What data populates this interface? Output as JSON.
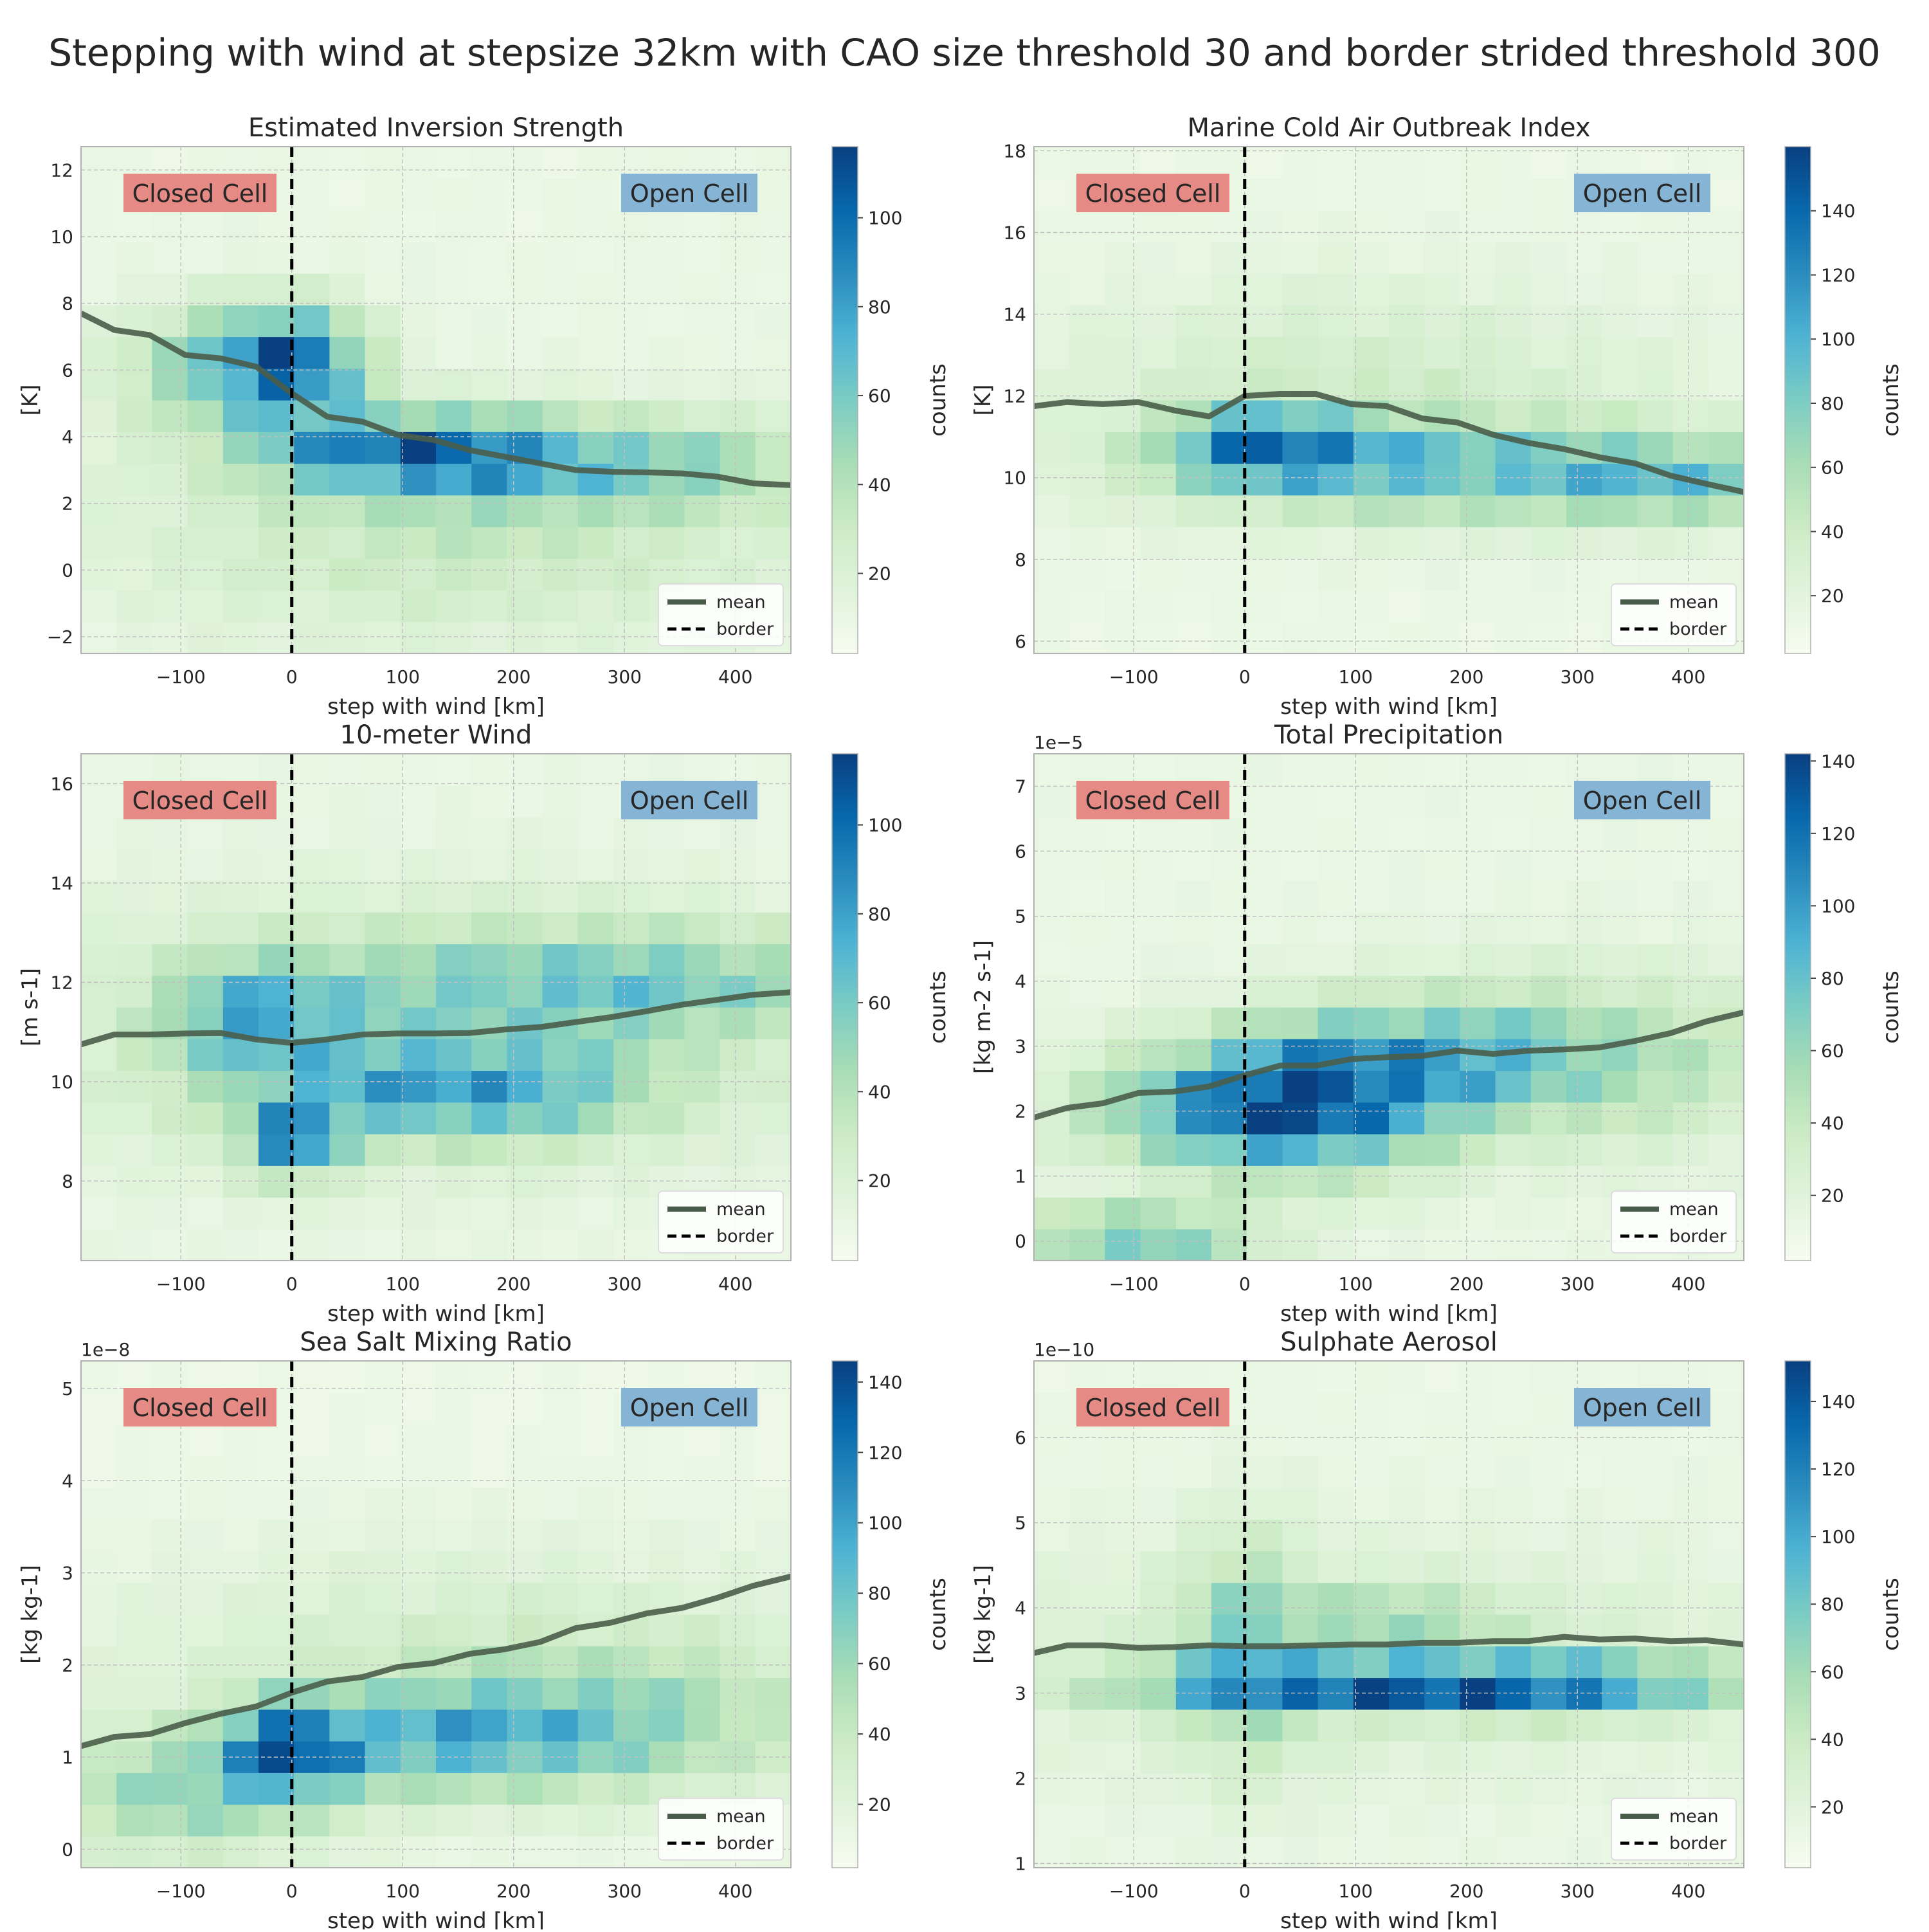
{
  "figure": {
    "title": "Stepping with wind at stepsize 32km with CAO size threshold 30 and border strided threshold 300"
  },
  "colors": {
    "cmap": [
      "#f7fcf0",
      "#e0f3db",
      "#ccebc5",
      "#a8ddb5",
      "#7bccc4",
      "#4eb3d3",
      "#2b8cbe",
      "#0868ac",
      "#084081"
    ],
    "empty_bin": "#eeeeee",
    "mean_line": "#4a5d4a",
    "border_line": "#000000",
    "closed_cell_box": "#e58a84",
    "open_cell_box": "#86b4d4",
    "grid": "#c0c0c0",
    "axes_edge": "#b0b0b0"
  },
  "chart_data": [
    {
      "type": "heatmap",
      "title": "Estimated Inversion Strength",
      "xlabel": "step with wind [km]",
      "ylabel": "[K]",
      "exponent_label": "",
      "xlim": [
        -190,
        450
      ],
      "ylim": [
        -2.5,
        12.7
      ],
      "xticks": [
        -100,
        0,
        100,
        200,
        300,
        400
      ],
      "xtick_labels": [
        "−100",
        "0",
        "100",
        "200",
        "300",
        "400"
      ],
      "yticks": [
        -2,
        0,
        2,
        4,
        6,
        8,
        10,
        12
      ],
      "ytick_labels": [
        "−2",
        "0",
        "2",
        "4",
        "6",
        "8",
        "10",
        "12"
      ],
      "colorbar": {
        "label": "counts",
        "min": 2,
        "max": 116,
        "ticks": [
          20,
          40,
          60,
          80,
          100
        ],
        "tick_labels": [
          "20",
          "40",
          "60",
          "80",
          "100"
        ]
      },
      "bins": {
        "nx": 20,
        "ny": 16
      },
      "hotspots": [
        {
          "x": 0,
          "y": 6.3,
          "sx": 45,
          "sy": 1.1,
          "amp": 70
        },
        {
          "x": 100,
          "y": 3.6,
          "sx": 90,
          "sy": 0.8,
          "amp": 65
        },
        {
          "x": 280,
          "y": 3.2,
          "sx": 150,
          "sy": 1.0,
          "amp": 40
        },
        {
          "x": -60,
          "y": 6.0,
          "sx": 70,
          "sy": 1.3,
          "amp": 40
        },
        {
          "x": 150,
          "y": 1.0,
          "sx": 220,
          "sy": 2.2,
          "amp": 22
        }
      ],
      "background": 10,
      "mean": {
        "x": [
          -190,
          -160,
          -128,
          -96,
          -64,
          -32,
          0,
          32,
          64,
          96,
          128,
          160,
          192,
          224,
          256,
          288,
          320,
          352,
          384,
          416,
          450
        ],
        "y": [
          7.7,
          7.2,
          7.05,
          6.45,
          6.35,
          6.1,
          5.3,
          4.6,
          4.45,
          4.05,
          3.9,
          3.6,
          3.4,
          3.2,
          3.0,
          2.95,
          2.93,
          2.9,
          2.8,
          2.6,
          2.55
        ]
      },
      "border_x": 0,
      "labels": {
        "closed": "Closed Cell",
        "open": "Open Cell"
      },
      "legend": {
        "mean": "mean",
        "border": "border"
      }
    },
    {
      "type": "heatmap",
      "title": "Marine Cold Air Outbreak Index",
      "xlabel": "step with wind [km]",
      "ylabel": "[K]",
      "exponent_label": "",
      "xlim": [
        -190,
        450
      ],
      "ylim": [
        5.7,
        18.1
      ],
      "xticks": [
        -100,
        0,
        100,
        200,
        300,
        400
      ],
      "xtick_labels": [
        "−100",
        "0",
        "100",
        "200",
        "300",
        "400"
      ],
      "yticks": [
        6,
        8,
        10,
        12,
        14,
        16,
        18
      ],
      "ytick_labels": [
        "6",
        "8",
        "10",
        "12",
        "14",
        "16",
        "18"
      ],
      "colorbar": {
        "label": "counts",
        "min": 2,
        "max": 160,
        "ticks": [
          20,
          40,
          60,
          80,
          100,
          120,
          140
        ],
        "tick_labels": [
          "20",
          "40",
          "60",
          "80",
          "100",
          "120",
          "140"
        ]
      },
      "bins": {
        "nx": 20,
        "ny": 16
      },
      "hotspots": [
        {
          "x": 20,
          "y": 10.8,
          "sx": 60,
          "sy": 0.6,
          "amp": 90
        },
        {
          "x": 200,
          "y": 10.2,
          "sx": 170,
          "sy": 0.8,
          "amp": 65
        },
        {
          "x": 400,
          "y": 9.8,
          "sx": 80,
          "sy": 0.7,
          "amp": 45
        },
        {
          "x": 100,
          "y": 12.0,
          "sx": 200,
          "sy": 2.0,
          "amp": 25
        }
      ],
      "background": 12,
      "mean": {
        "x": [
          -190,
          -160,
          -128,
          -96,
          -64,
          -32,
          0,
          32,
          64,
          96,
          128,
          160,
          192,
          224,
          256,
          288,
          320,
          352,
          384,
          416,
          450
        ],
        "y": [
          11.75,
          11.85,
          11.8,
          11.85,
          11.65,
          11.5,
          12.0,
          12.05,
          12.05,
          11.8,
          11.75,
          11.45,
          11.35,
          11.05,
          10.85,
          10.7,
          10.5,
          10.35,
          10.05,
          9.85,
          9.65
        ]
      },
      "border_x": 0,
      "labels": {
        "closed": "Closed Cell",
        "open": "Open Cell"
      },
      "legend": {
        "mean": "mean",
        "border": "border"
      }
    },
    {
      "type": "heatmap",
      "title": "10-meter Wind",
      "xlabel": "step with wind [km]",
      "ylabel": "[m s-1]",
      "exponent_label": "",
      "xlim": [
        -190,
        450
      ],
      "ylim": [
        6.4,
        16.6
      ],
      "xticks": [
        -100,
        0,
        100,
        200,
        300,
        400
      ],
      "xtick_labels": [
        "−100",
        "0",
        "100",
        "200",
        "300",
        "400"
      ],
      "yticks": [
        8,
        10,
        12,
        14,
        16
      ],
      "ytick_labels": [
        "8",
        "10",
        "12",
        "14",
        "16"
      ],
      "colorbar": {
        "label": "counts",
        "min": 2,
        "max": 116,
        "ticks": [
          20,
          40,
          60,
          80,
          100
        ],
        "tick_labels": [
          "20",
          "40",
          "60",
          "80",
          "100"
        ]
      },
      "bins": {
        "nx": 20,
        "ny": 16
      },
      "hotspots": [
        {
          "x": 0,
          "y": 8.8,
          "sx": 30,
          "sy": 0.5,
          "amp": 70
        },
        {
          "x": 150,
          "y": 9.8,
          "sx": 120,
          "sy": 0.7,
          "amp": 55
        },
        {
          "x": -30,
          "y": 11.3,
          "sx": 60,
          "sy": 0.8,
          "amp": 45
        },
        {
          "x": 300,
          "y": 12.0,
          "sx": 180,
          "sy": 0.8,
          "amp": 40
        },
        {
          "x": 100,
          "y": 11.0,
          "sx": 260,
          "sy": 2.0,
          "amp": 20
        }
      ],
      "background": 10,
      "mean": {
        "x": [
          -190,
          -160,
          -128,
          -96,
          -64,
          -32,
          0,
          32,
          64,
          96,
          128,
          160,
          192,
          224,
          256,
          288,
          320,
          352,
          384,
          416,
          450
        ],
        "y": [
          10.75,
          10.95,
          10.95,
          10.97,
          10.98,
          10.85,
          10.78,
          10.85,
          10.95,
          10.97,
          10.97,
          10.98,
          11.05,
          11.1,
          11.2,
          11.3,
          11.42,
          11.55,
          11.65,
          11.75,
          11.8
        ]
      },
      "border_x": 0,
      "labels": {
        "closed": "Closed Cell",
        "open": "Open Cell"
      },
      "legend": {
        "mean": "mean",
        "border": "border"
      }
    },
    {
      "type": "heatmap",
      "title": "Total Precipitation",
      "xlabel": "step with wind [km]",
      "ylabel": "[kg m-2 s-1]",
      "exponent_label": "1e−5",
      "xlim": [
        -190,
        450
      ],
      "ylim": [
        -0.3,
        7.5
      ],
      "xticks": [
        -100,
        0,
        100,
        200,
        300,
        400
      ],
      "xtick_labels": [
        "−100",
        "0",
        "100",
        "200",
        "300",
        "400"
      ],
      "yticks": [
        0,
        1,
        2,
        3,
        4,
        5,
        6,
        7
      ],
      "ytick_labels": [
        "0",
        "1",
        "2",
        "3",
        "4",
        "5",
        "6",
        "7"
      ],
      "colorbar": {
        "label": "counts",
        "min": 2,
        "max": 142,
        "ticks": [
          20,
          40,
          60,
          80,
          100,
          120,
          140
        ],
        "tick_labels": [
          "20",
          "40",
          "60",
          "80",
          "100",
          "120",
          "140"
        ]
      },
      "bins": {
        "nx": 20,
        "ny": 16
      },
      "hotspots": [
        {
          "x": 60,
          "y": 2.0,
          "sx": 80,
          "sy": 0.7,
          "amp": 85
        },
        {
          "x": 150,
          "y": 2.8,
          "sx": 120,
          "sy": 0.6,
          "amp": 50
        },
        {
          "x": -100,
          "y": 0.1,
          "sx": 80,
          "sy": 0.3,
          "amp": 65
        },
        {
          "x": -50,
          "y": 2.0,
          "sx": 80,
          "sy": 0.6,
          "amp": 50
        },
        {
          "x": 300,
          "y": 2.8,
          "sx": 150,
          "sy": 1.0,
          "amp": 35
        }
      ],
      "background": 12,
      "mean": {
        "x": [
          -190,
          -160,
          -128,
          -96,
          -64,
          -32,
          0,
          32,
          64,
          96,
          128,
          160,
          192,
          224,
          256,
          288,
          320,
          352,
          384,
          416,
          450
        ],
        "y": [
          1.9,
          2.05,
          2.12,
          2.28,
          2.3,
          2.38,
          2.55,
          2.7,
          2.7,
          2.8,
          2.83,
          2.85,
          2.93,
          2.88,
          2.93,
          2.95,
          2.98,
          3.08,
          3.2,
          3.38,
          3.52
        ]
      },
      "border_x": 0,
      "labels": {
        "closed": "Closed Cell",
        "open": "Open Cell"
      },
      "legend": {
        "mean": "mean",
        "border": "border"
      }
    },
    {
      "type": "heatmap",
      "title": "Sea Salt Mixing Ratio",
      "xlabel": "step with wind [km]",
      "ylabel": "[kg kg-1]",
      "exponent_label": "1e−8",
      "xlim": [
        -190,
        450
      ],
      "ylim": [
        -0.2,
        5.3
      ],
      "xticks": [
        -100,
        0,
        100,
        200,
        300,
        400
      ],
      "xtick_labels": [
        "−100",
        "0",
        "100",
        "200",
        "300",
        "400"
      ],
      "yticks": [
        0,
        1,
        2,
        3,
        4,
        5
      ],
      "ytick_labels": [
        "0",
        "1",
        "2",
        "3",
        "4",
        "5"
      ],
      "colorbar": {
        "label": "counts",
        "min": 2,
        "max": 146,
        "ticks": [
          20,
          40,
          60,
          80,
          100,
          120,
          140
        ],
        "tick_labels": [
          "20",
          "40",
          "60",
          "80",
          "100",
          "120",
          "140"
        ]
      },
      "bins": {
        "nx": 20,
        "ny": 16
      },
      "hotspots": [
        {
          "x": 0,
          "y": 1.1,
          "sx": 40,
          "sy": 0.35,
          "amp": 85
        },
        {
          "x": 150,
          "y": 1.2,
          "sx": 110,
          "sy": 0.4,
          "amp": 55
        },
        {
          "x": -100,
          "y": 0.6,
          "sx": 100,
          "sy": 0.5,
          "amp": 50
        },
        {
          "x": 300,
          "y": 1.4,
          "sx": 150,
          "sy": 0.6,
          "amp": 35
        },
        {
          "x": 150,
          "y": 2.2,
          "sx": 250,
          "sy": 0.9,
          "amp": 18
        }
      ],
      "background": 10,
      "mean": {
        "x": [
          -190,
          -160,
          -128,
          -96,
          -64,
          -32,
          0,
          32,
          64,
          96,
          128,
          160,
          192,
          224,
          256,
          288,
          320,
          352,
          384,
          416,
          450
        ],
        "y": [
          1.12,
          1.22,
          1.25,
          1.37,
          1.47,
          1.55,
          1.7,
          1.82,
          1.87,
          1.98,
          2.02,
          2.12,
          2.17,
          2.25,
          2.4,
          2.46,
          2.56,
          2.62,
          2.73,
          2.86,
          2.96
        ]
      },
      "border_x": 0,
      "labels": {
        "closed": "Closed Cell",
        "open": "Open Cell"
      },
      "legend": {
        "mean": "mean",
        "border": "border"
      }
    },
    {
      "type": "heatmap",
      "title": "Sulphate Aerosol",
      "xlabel": "step with wind [km]",
      "ylabel": "[kg kg-1]",
      "exponent_label": "1e−10",
      "xlim": [
        -190,
        450
      ],
      "ylim": [
        0.95,
        6.9
      ],
      "xticks": [
        -100,
        0,
        100,
        200,
        300,
        400
      ],
      "xtick_labels": [
        "−100",
        "0",
        "100",
        "200",
        "300",
        "400"
      ],
      "yticks": [
        1,
        2,
        3,
        4,
        5,
        6
      ],
      "ytick_labels": [
        "1",
        "2",
        "3",
        "4",
        "5",
        "6"
      ],
      "colorbar": {
        "label": "counts",
        "min": 2,
        "max": 152,
        "ticks": [
          20,
          40,
          60,
          80,
          100,
          120,
          140
        ],
        "tick_labels": [
          "20",
          "40",
          "60",
          "80",
          "100",
          "120",
          "140"
        ]
      },
      "bins": {
        "nx": 20,
        "ny": 16
      },
      "hotspots": [
        {
          "x": 120,
          "y": 3.1,
          "sx": 150,
          "sy": 0.2,
          "amp": 100
        },
        {
          "x": 300,
          "y": 3.1,
          "sx": 120,
          "sy": 0.25,
          "amp": 55
        },
        {
          "x": 0,
          "y": 3.5,
          "sx": 40,
          "sy": 1.0,
          "amp": 40
        },
        {
          "x": 130,
          "y": 3.9,
          "sx": 80,
          "sy": 0.25,
          "amp": 35
        },
        {
          "x": 100,
          "y": 3.4,
          "sx": 300,
          "sy": 1.0,
          "amp": 18
        }
      ],
      "background": 12,
      "mean": {
        "x": [
          -190,
          -160,
          -128,
          -96,
          -64,
          -32,
          0,
          32,
          64,
          96,
          128,
          160,
          192,
          224,
          256,
          288,
          320,
          352,
          384,
          416,
          450
        ],
        "y": [
          3.47,
          3.56,
          3.56,
          3.53,
          3.54,
          3.56,
          3.55,
          3.55,
          3.56,
          3.57,
          3.57,
          3.59,
          3.59,
          3.61,
          3.61,
          3.66,
          3.63,
          3.64,
          3.61,
          3.62,
          3.57
        ]
      },
      "border_x": 0,
      "labels": {
        "closed": "Closed Cell",
        "open": "Open Cell"
      },
      "legend": {
        "mean": "mean",
        "border": "border"
      }
    }
  ]
}
